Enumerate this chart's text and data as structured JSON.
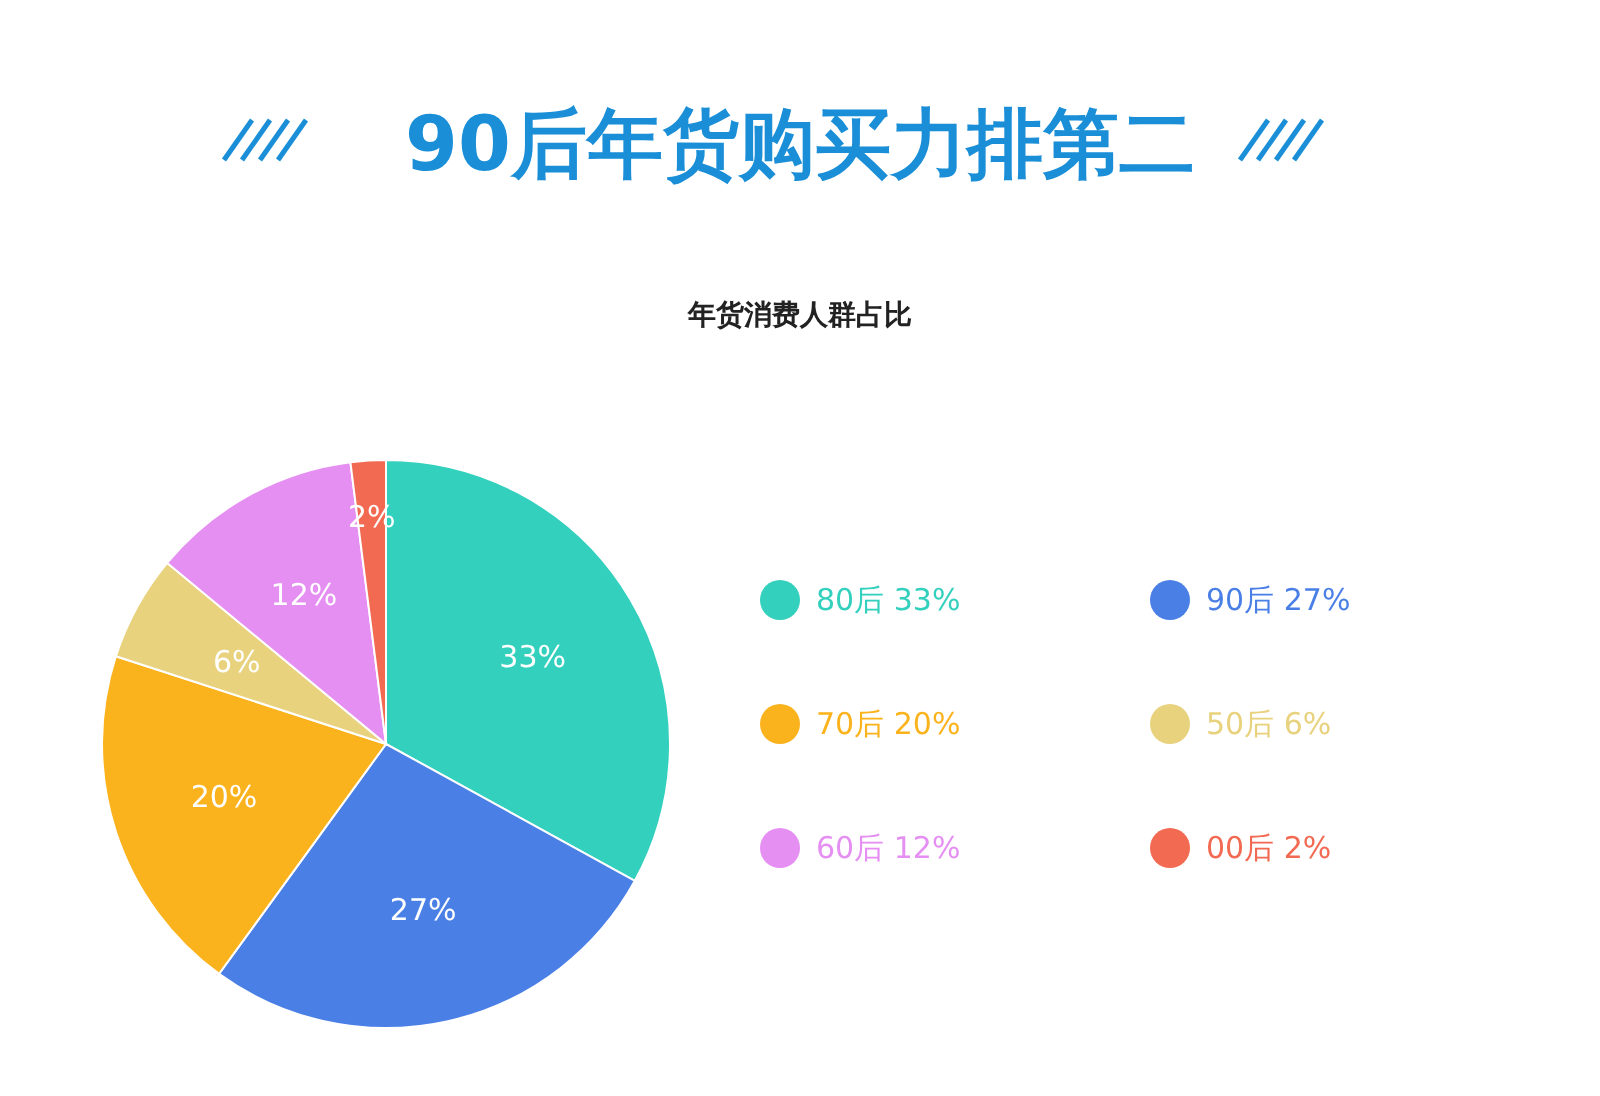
{
  "chart_data": {
    "type": "pie",
    "title": "90后年货购买力排第二",
    "subtitle": "年货消费人群占比",
    "categories": [
      "80后",
      "90后",
      "70后",
      "50后",
      "60后",
      "00后"
    ],
    "values": [
      33,
      27,
      20,
      6,
      12,
      2
    ],
    "value_labels": [
      "33%",
      "27%",
      "20%",
      "6%",
      "12%",
      "2%"
    ],
    "colors": [
      "#33d0bd",
      "#4a7fe6",
      "#fbb31d",
      "#e8d27e",
      "#e58ff2",
      "#f26a52"
    ],
    "legend": "right"
  }
}
